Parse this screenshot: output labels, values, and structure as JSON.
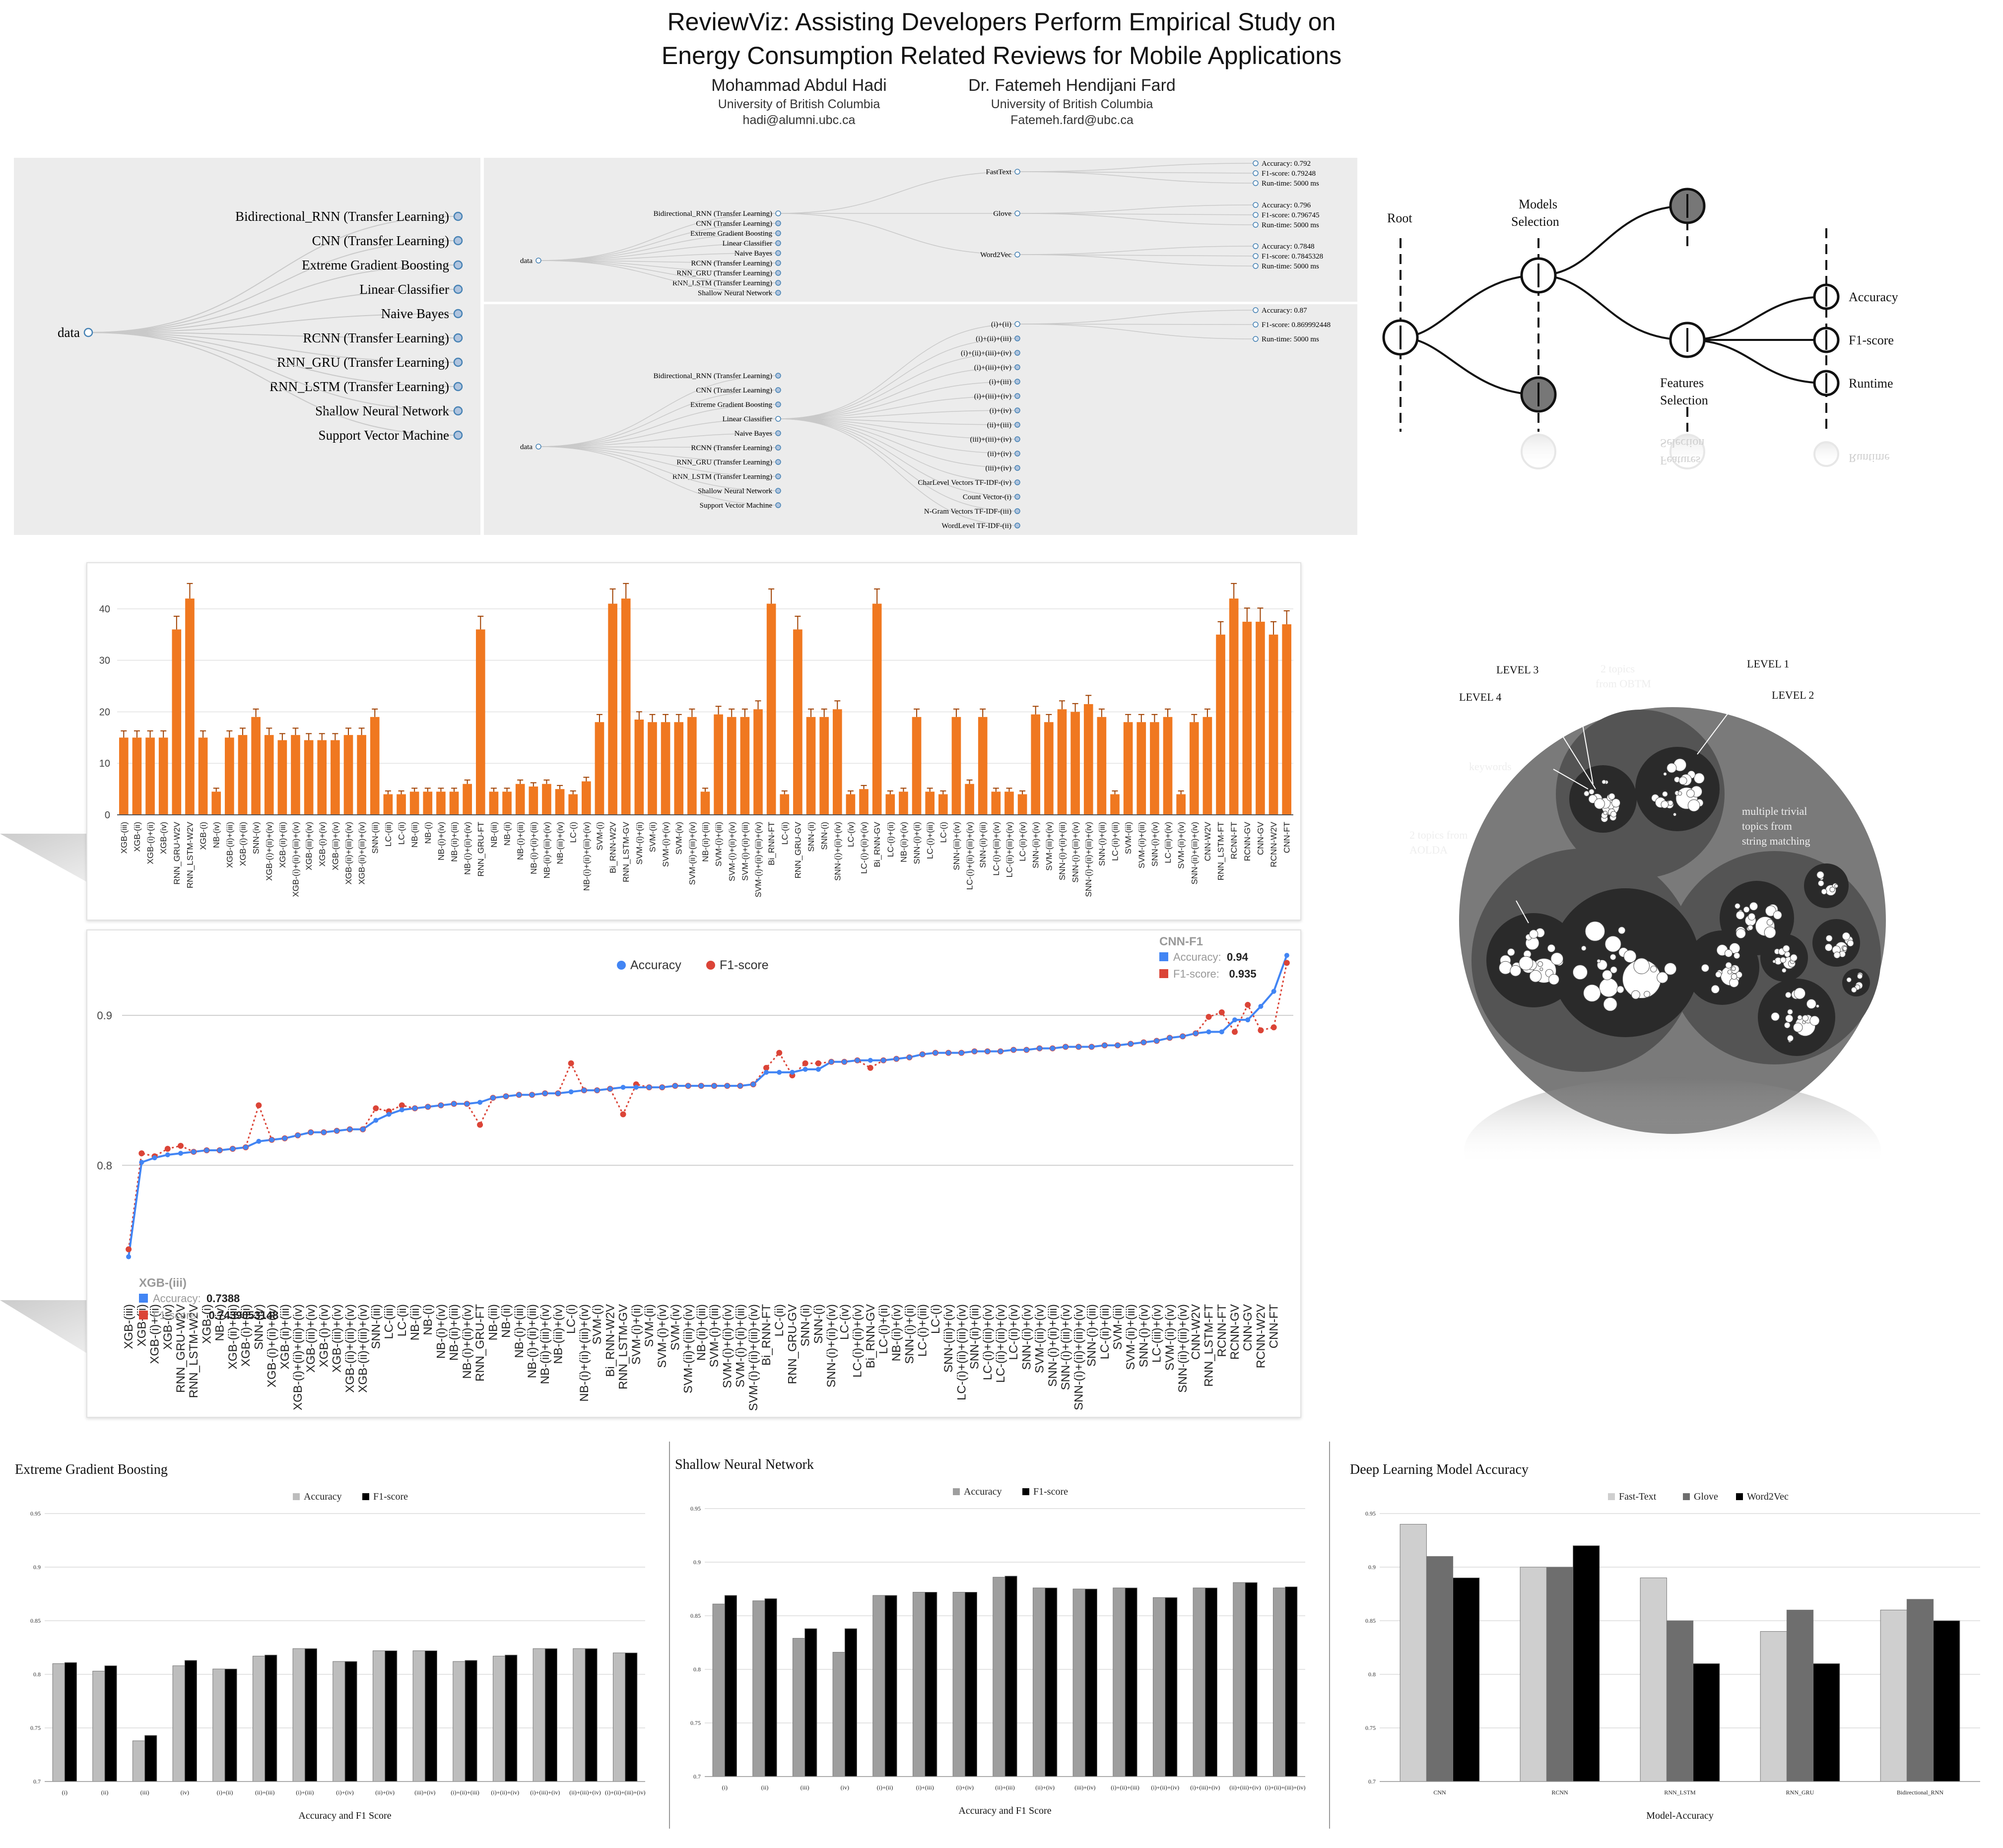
{
  "header": {
    "title_line1": "ReviewViz: Assisting Developers Perform Empirical Study on",
    "title_line2": "Energy Consumption Related Reviews for Mobile Applications",
    "authors": [
      {
        "name": "Mohammad Abdul Hadi",
        "affiliation": "University of British Columbia",
        "email": "hadi@alumni.ubc.ca"
      },
      {
        "name": "Dr. Fatemeh Hendijani Fard",
        "affiliation": "University of British Columbia",
        "email": "Fatemeh.fard@ubc.ca"
      }
    ]
  },
  "tree_left": {
    "root": "data",
    "children": [
      "Bidirectional_RNN (Transfer Learning)",
      "CNN (Transfer Learning)",
      "Extreme Gradient Boosting",
      "Linear Classifier",
      "Naive Bayes",
      "RCNN (Transfer Learning)",
      "RNN_GRU (Transfer Learning)",
      "RNN_LSTM (Transfer Learning)",
      "Shallow Neural Network",
      "Support Vector Machine"
    ]
  },
  "tree_top": {
    "root": "data",
    "models": [
      "Bidirectional_RNN (Transfer Learning)",
      "CNN (Transfer Learning)",
      "Extreme Gradient Boosting",
      "Linear Classifier",
      "Naive Bayes",
      "RCNN (Transfer Learning)",
      "RNN_GRU (Transfer Learning)",
      "RNN_LSTM (Transfer Learning)",
      "Shallow Neural Network"
    ],
    "embeddings": [
      {
        "name": "FastText",
        "metrics": [
          "Accuracy: 0.792",
          "F1-score: 0.79248",
          "Run-time: 5000 ms"
        ]
      },
      {
        "name": "Glove",
        "metrics": [
          "Accuracy: 0.796",
          "F1-score: 0.796745",
          "Run-time: 5000 ms"
        ]
      },
      {
        "name": "Word2Vec",
        "metrics": [
          "Accuracy: 0.7848",
          "F1-score: 0.7845328",
          "Run-time: 5000 ms"
        ]
      }
    ]
  },
  "tree_bottom": {
    "root": "data",
    "models": [
      "Bidirectional_RNN (Transfer Learning)",
      "CNN (Transfer Learning)",
      "Extreme Gradient Boosting",
      "Linear Classifier",
      "Naive Bayes",
      "RCNN (Transfer Learning)",
      "RNN_GRU (Transfer Learning)",
      "RNN_LSTM (Transfer Learning)",
      "Shallow Neural Network",
      "Support Vector Machine"
    ],
    "features": [
      "(i)+(ii)",
      "(i)+(ii)+(iii)",
      "(i)+(ii)+(iii)+(iv)",
      "(i)+(iii)+(iv)",
      "(i)+(iii)",
      "(i)+(iii)+(iv)",
      "(i)+(iv)",
      "(ii)+(iii)",
      "(iii)+(iii)+(iv)",
      "(ii)+(iv)",
      "(iii)+(iv)",
      "CharLevel Vectors TF-IDF-(iv)",
      "Count Vector-(i)",
      "N-Gram Vectors TF-IDF-(iii)",
      "WordLevel TF-IDF-(ii)"
    ],
    "metrics": [
      "Accuracy: 0.87",
      "F1-score: 0.869992448",
      "Run-time: 5000 ms"
    ]
  },
  "schematic": {
    "labels": [
      "Root",
      "Models",
      "Selection",
      "Features",
      "Selection",
      "Accuracy",
      "F1-score",
      "Runtime"
    ],
    "reflection_labels": [
      "Selection",
      "Features",
      "Runtime"
    ]
  },
  "bubble": {
    "labels": [
      "LEVEL 3",
      "LEVEL 1",
      "LEVEL 4",
      "LEVEL 2",
      "2 topics",
      "from OBTM",
      "keywords",
      "multiple trivial",
      "topics from",
      "string matching",
      "2 topics from",
      "AOLDA"
    ]
  },
  "bar_chart": {
    "type": "bar",
    "color": "#f07820",
    "ylim": [
      0,
      45
    ],
    "yticks": [
      0,
      10,
      20,
      30,
      40
    ],
    "categories": [
      "XGB-(iii)",
      "XGB-(ii)",
      "XGB-(i)+(ii)",
      "XGB-(iv)",
      "RNN_GRU-W2V",
      "RNN_LSTM-W2V",
      "XGB-(i)",
      "NB-(iv)",
      "XGB-(ii)+(iii)",
      "XGB-(i)+(iii)",
      "SNN-(iv)",
      "XGB-(i)+(ii)+(iv)",
      "XGB-(ii)+(iii)",
      "XGB-(i)+(ii)+(iii)+(iv)",
      "XGB-(iii)+(iv)",
      "XGB-(i)+(iv)",
      "XGB-(iii)+(iv)",
      "XGB-(ii)+(iii)+(iv)",
      "XGB-(ii)+(iii)+(iv)",
      "SNN-(iii)",
      "LC-(iii)",
      "LC-(ii)",
      "NB-(iii)",
      "NB-(i)",
      "NB-(i)+(iv)",
      "NB-(ii)+(iii)",
      "NB-(i)+(ii)+(iv)",
      "RNN_GRU-FT",
      "NB-(iii)",
      "NB-(ii)",
      "NB-(i)+(iii)",
      "NB-(i)+(ii)+(iii)",
      "NB-(ii)+(iii)+(iv)",
      "NB-(iii)+(iv)",
      "LC-(i)",
      "NB-(i)+(ii)+(iii)+(iv)",
      "SVM-(i)",
      "Bi_RNN-W2V",
      "RNN_LSTM-GV",
      "SVM-(i)+(ii)",
      "SVM-(ii)",
      "SVM-(i)+(iv)",
      "SVM-(iv)",
      "SVM-(ii)+(iii)+(iv)",
      "NB-(ii)+(iii)",
      "SVM-(i)+(iii)",
      "SVM-(i)+(ii)+(iv)",
      "SVM-(i)+(ii)+(iii)",
      "SVM-(i)+(ii)+(iii)+(iv)",
      "Bi_RNN-FT",
      "LC-(ii)",
      "RNN_GRU-GV",
      "SNN-(ii)",
      "SNN-(i)",
      "SNN-(i)+(ii)+(iv)",
      "LC-(iv)",
      "LC-(i)+(ii)+(iv)",
      "Bi_RNN-GV",
      "LC-(i)+(ii)",
      "NB-(ii)+(iv)",
      "SNN-(i)+(ii)",
      "LC-(i)+(iii)",
      "LC-(i)",
      "SNN-(iii)+(iv)",
      "LC-(i)+(ii)+(iii)+(iv)",
      "SNN-(ii)+(iii)",
      "LC-(i)+(iii)+(iv)",
      "LC-(ii)+(iii)+(iv)",
      "LC-(ii)+(iv)",
      "SNN-(ii)+(iv)",
      "SVM-(iii)+(iv)",
      "SNN-(i)+(ii)+(iii)",
      "SNN-(i)+(iii)+(iv)",
      "SNN-(i)+(ii)+(iii)+(iv)",
      "SNN-(i)+(iii)",
      "LC-(ii)+(iii)",
      "SVM-(iii)",
      "SVM-(ii)+(iii)",
      "SNN-(i)+(iv)",
      "LC-(iii)+(iv)",
      "SVM-(ii)+(iv)",
      "SNN-(ii)+(iii)+(iv)",
      "CNN-W2V",
      "RNN_LSTM-FT",
      "RCNN-FT",
      "RCNN-GV",
      "CNN-GV",
      "RCNN-W2V",
      "CNN-FT"
    ],
    "values": [
      15,
      15,
      15,
      15,
      36,
      42,
      15,
      4.5,
      15,
      15.5,
      19,
      15.5,
      14.5,
      15.5,
      14.5,
      14.5,
      14.5,
      15.5,
      15.5,
      19,
      4,
      4,
      4.5,
      4.5,
      4.5,
      4.5,
      6,
      36,
      4.5,
      4.5,
      6,
      5.5,
      6,
      5,
      4,
      6.5,
      18,
      41,
      42,
      18.5,
      18,
      18,
      18,
      19,
      4.5,
      19.5,
      19,
      19,
      20.5,
      41,
      4,
      36,
      19,
      19,
      20.5,
      4,
      5,
      41,
      4,
      4.5,
      19,
      4.5,
      4,
      19,
      6,
      19,
      4.5,
      4.5,
      4,
      19.5,
      18,
      20.5,
      20,
      21.5,
      19,
      4,
      18,
      18,
      18,
      19,
      4,
      18,
      19,
      35,
      42,
      37.5,
      37.5,
      35,
      37
    ]
  },
  "line_chart": {
    "type": "line",
    "legend": [
      "Accuracy",
      "F1-score"
    ],
    "colors": {
      "accuracy": "#4285f4",
      "f1": "#db4437"
    },
    "ylim": [
      0.72,
      0.95
    ],
    "yticks": [
      0.8,
      0.9
    ],
    "ytick_labels": [
      "0.8",
      "0.9"
    ],
    "tooltip_top": {
      "label": "CNN-F1",
      "acc_label": "Accuracy:",
      "acc_value": "0.94",
      "f1_label": "F1-score:",
      "f1_value": "0.935"
    },
    "tooltip_bottom": {
      "label": "XGB-(iii)",
      "acc_label": "Accuracy:",
      "acc_value": "0.7388",
      "f1_label": "F1-score:",
      "f1_value": "0.7439053148"
    },
    "categories": [
      "XGB-(iii)",
      "XGB-(ii)",
      "XGB-(i)+(ii)",
      "XGB-(iv)",
      "RNN_GRU-W2V",
      "RNN_LSTM-W2V",
      "XGB-(i)",
      "NB-(iv)",
      "XGB-(ii)+(iii)",
      "XGB-(i)+(iii)",
      "SNN-(iv)",
      "XGB-(i)+(ii)+(iv)",
      "XGB-(ii)+(iii)",
      "XGB-(i)+(ii)+(iii)+(iv)",
      "XGB-(iii)+(iv)",
      "XGB-(i)+(iv)",
      "XGB-(iii)+(iv)",
      "XGB-(ii)+(iii)+(iv)",
      "XGB-(ii)+(iii)+(iv)",
      "SNN-(iii)",
      "LC-(iii)",
      "LC-(ii)",
      "NB-(iii)",
      "NB-(i)",
      "NB-(i)+(iv)",
      "NB-(ii)+(iii)",
      "NB-(i)+(ii)+(iv)",
      "RNN_GRU-FT",
      "NB-(iii)",
      "NB-(ii)",
      "NB-(i)+(iii)",
      "NB-(i)+(ii)+(iii)",
      "NB-(ii)+(iii)+(iv)",
      "NB-(iii)+(iv)",
      "LC-(i)",
      "NB-(i)+(ii)+(iii)+(iv)",
      "SVM-(i)",
      "Bi_RNN-W2V",
      "RNN_LSTM-GV",
      "SVM-(i)+(ii)",
      "SVM-(ii)",
      "SVM-(i)+(iv)",
      "SVM-(iv)",
      "SVM-(ii)+(iii)+(iv)",
      "NB-(ii)+(iii)",
      "SVM-(i)+(iii)",
      "SVM-(i)+(ii)+(iv)",
      "SVM-(i)+(ii)+(iii)",
      "SVM-(i)+(ii)+(iii)+(iv)",
      "Bi_RNN-FT",
      "LC-(ii)",
      "RNN_GRU-GV",
      "SNN-(ii)",
      "SNN-(i)",
      "SNN-(i)+(ii)+(iv)",
      "LC-(iv)",
      "LC-(i)+(ii)+(iv)",
      "Bi_RNN-GV",
      "LC-(i)+(ii)",
      "NB-(ii)+(iv)",
      "SNN-(i)+(ii)",
      "LC-(i)+(iii)",
      "LC-(i)",
      "SNN-(iii)+(iv)",
      "LC-(i)+(ii)+(iii)+(iv)",
      "SNN-(ii)+(iii)",
      "LC-(i)+(iii)+(iv)",
      "LC-(ii)+(iii)+(iv)",
      "LC-(ii)+(iv)",
      "SNN-(ii)+(iv)",
      "SVM-(iii)+(iv)",
      "SNN-(i)+(ii)+(iii)",
      "SNN-(i)+(iii)+(iv)",
      "SNN-(i)+(ii)+(iii)+(iv)",
      "SNN-(i)+(iii)",
      "LC-(ii)+(iii)",
      "SVM-(iii)",
      "SVM-(ii)+(iii)",
      "SNN-(i)+(iv)",
      "LC-(iii)+(iv)",
      "SVM-(ii)+(iv)",
      "SNN-(ii)+(iii)+(iv)",
      "CNN-W2V",
      "RNN_LSTM-FT",
      "RCNN-FT",
      "RCNN-GV",
      "CNN-GV",
      "RCNN-W2V",
      "CNN-FT"
    ],
    "accuracy": [
      0.739,
      0.802,
      0.805,
      0.807,
      0.808,
      0.809,
      0.81,
      0.81,
      0.811,
      0.812,
      0.816,
      0.817,
      0.818,
      0.82,
      0.822,
      0.822,
      0.823,
      0.824,
      0.824,
      0.83,
      0.834,
      0.837,
      0.838,
      0.839,
      0.84,
      0.841,
      0.841,
      0.842,
      0.845,
      0.846,
      0.847,
      0.847,
      0.848,
      0.848,
      0.849,
      0.85,
      0.85,
      0.851,
      0.852,
      0.852,
      0.852,
      0.852,
      0.853,
      0.853,
      0.853,
      0.853,
      0.853,
      0.853,
      0.854,
      0.862,
      0.862,
      0.862,
      0.864,
      0.864,
      0.869,
      0.869,
      0.87,
      0.87,
      0.87,
      0.871,
      0.872,
      0.874,
      0.875,
      0.875,
      0.875,
      0.876,
      0.876,
      0.876,
      0.877,
      0.877,
      0.878,
      0.878,
      0.879,
      0.879,
      0.879,
      0.88,
      0.88,
      0.881,
      0.882,
      0.883,
      0.885,
      0.886,
      0.888,
      0.889,
      0.889,
      0.897,
      0.897,
      0.906,
      0.916,
      0.94
    ],
    "f1": [
      0.744,
      0.808,
      0.806,
      0.811,
      0.813,
      0.809,
      0.81,
      0.81,
      0.811,
      0.812,
      0.84,
      0.817,
      0.818,
      0.82,
      0.822,
      0.822,
      0.823,
      0.824,
      0.824,
      0.838,
      0.836,
      0.84,
      0.838,
      0.839,
      0.84,
      0.841,
      0.841,
      0.827,
      0.845,
      0.846,
      0.847,
      0.847,
      0.848,
      0.848,
      0.868,
      0.85,
      0.85,
      0.851,
      0.834,
      0.854,
      0.852,
      0.852,
      0.853,
      0.853,
      0.853,
      0.853,
      0.853,
      0.853,
      0.854,
      0.865,
      0.875,
      0.86,
      0.868,
      0.868,
      0.869,
      0.869,
      0.87,
      0.865,
      0.87,
      0.871,
      0.872,
      0.874,
      0.875,
      0.875,
      0.875,
      0.876,
      0.876,
      0.876,
      0.877,
      0.877,
      0.878,
      0.878,
      0.879,
      0.879,
      0.879,
      0.88,
      0.88,
      0.881,
      0.882,
      0.883,
      0.885,
      0.886,
      0.888,
      0.899,
      0.902,
      0.889,
      0.907,
      0.89,
      0.892,
      0.935
    ]
  },
  "small_charts": [
    {
      "type": "bar",
      "title": "Extreme Gradient Boosting",
      "xlabel": "Accuracy and F1 Score",
      "legend": [
        "Accuracy",
        "F1-score"
      ],
      "colors": [
        "#bdbdbd",
        "#000000"
      ],
      "ylim": [
        0.7,
        0.95
      ],
      "yticks": [
        "0.7",
        "0.75",
        "0.8",
        "0.85",
        "0.9",
        "0.95"
      ],
      "categories": [
        "(i)",
        "(ii)",
        "(iii)",
        "(iv)",
        "(i)+(ii)",
        "(ii)+(iii)",
        "(i)+(iii)",
        "(i)+(iv)",
        "(ii)+(iv)",
        "(iii)+(iv)",
        "(i)+(ii)+(iii)",
        "(i)+(ii)+(iv)",
        "(i)+(iii)+(iv)",
        "(ii)+(iii)+(iv)",
        "(i)+(ii)+(iii)+(iv)"
      ],
      "series": [
        {
          "name": "Accuracy",
          "values": [
            0.81,
            0.803,
            0.738,
            0.808,
            0.805,
            0.817,
            0.824,
            0.812,
            0.822,
            0.822,
            0.812,
            0.817,
            0.824,
            0.824,
            0.82
          ]
        },
        {
          "name": "F1-score",
          "values": [
            0.811,
            0.808,
            0.743,
            0.813,
            0.805,
            0.818,
            0.824,
            0.812,
            0.822,
            0.822,
            0.813,
            0.818,
            0.824,
            0.824,
            0.82
          ]
        }
      ]
    },
    {
      "type": "bar",
      "title": "Shallow Neural Network",
      "xlabel": "Accuracy and F1 Score",
      "legend": [
        "Accuracy",
        "F1-score"
      ],
      "colors": [
        "#9e9e9e",
        "#000000"
      ],
      "ylim": [
        0.7,
        0.95
      ],
      "yticks": [
        "0.7",
        "0.75",
        "0.8",
        "0.85",
        "0.9",
        "0.95"
      ],
      "categories": [
        "(i)",
        "(ii)",
        "(iii)",
        "(iv)",
        "(i)+(ii)",
        "(i)+(iii)",
        "(i)+(iv)",
        "(ii)+(iii)",
        "(ii)+(iv)",
        "(iii)+(iv)",
        "(i)+(ii)+(iii)",
        "(i)+(ii)+(iv)",
        "(i)+(iii)+(iv)",
        "(ii)+(iii)+(iv)",
        "(i)+(ii)+(iii)+(iv)"
      ],
      "series": [
        {
          "name": "Accuracy",
          "values": [
            0.861,
            0.864,
            0.829,
            0.816,
            0.869,
            0.872,
            0.872,
            0.886,
            0.876,
            0.875,
            0.876,
            0.867,
            0.876,
            0.881,
            0.876
          ]
        },
        {
          "name": "F1-score",
          "values": [
            0.869,
            0.866,
            0.838,
            0.838,
            0.869,
            0.872,
            0.872,
            0.887,
            0.876,
            0.875,
            0.876,
            0.867,
            0.876,
            0.881,
            0.877
          ]
        }
      ]
    },
    {
      "type": "bar",
      "title": "Deep Learning Model Accuracy",
      "xlabel": "Model-Accuracy",
      "legend": [
        "Fast-Text",
        "Glove",
        "Word2Vec"
      ],
      "colors": [
        "#cfcfcf",
        "#6e6e6e",
        "#000000"
      ],
      "ylim": [
        0.7,
        0.95
      ],
      "yticks": [
        "0.7",
        "0.75",
        "0.8",
        "0.85",
        "0.9",
        "0.95"
      ],
      "categories": [
        "CNN",
        "RCNN",
        "RNN_LSTM",
        "RNN_GRU",
        "Bidirectional_RNN"
      ],
      "series": [
        {
          "name": "Fast-Text",
          "values": [
            0.94,
            0.9,
            0.89,
            0.84,
            0.86
          ]
        },
        {
          "name": "Glove",
          "values": [
            0.91,
            0.9,
            0.85,
            0.86,
            0.87
          ]
        },
        {
          "name": "Word2Vec",
          "values": [
            0.89,
            0.92,
            0.81,
            0.81,
            0.85
          ]
        }
      ]
    }
  ]
}
